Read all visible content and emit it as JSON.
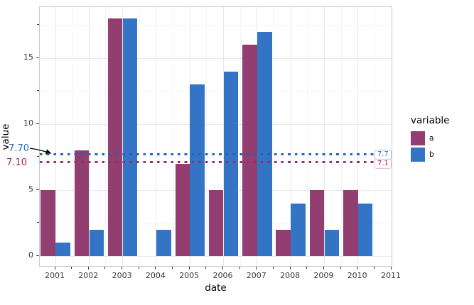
{
  "chart_data": {
    "type": "bar",
    "title": "",
    "xlabel": "date",
    "ylabel": "value",
    "legend_title": "variable",
    "legend_position": "right",
    "grid": true,
    "categories": [
      "2001",
      "2002",
      "2003",
      "2004",
      "2005",
      "2006",
      "2007",
      "2008",
      "2009",
      "2010"
    ],
    "series": [
      {
        "name": "a",
        "color": "#933e70",
        "values": [
          5,
          8,
          18,
          null,
          7,
          5,
          16,
          2,
          5,
          5
        ]
      },
      {
        "name": "b",
        "color": "#3374c4",
        "values": [
          1,
          2,
          18,
          2,
          13,
          14,
          17,
          4,
          2,
          4
        ]
      }
    ],
    "x_tick_labels": [
      "2001",
      "2002",
      "2003",
      "2004",
      "2005",
      "2006",
      "2007",
      "2008",
      "2009",
      "2010",
      "2011"
    ],
    "y_tick_labels": [
      "0",
      "5",
      "10",
      "15"
    ],
    "y_major": [
      0,
      5,
      10,
      15
    ],
    "y_minor": [
      2.5,
      7.5,
      12.5,
      17.5
    ],
    "ylim": [
      -0.9,
      18.9
    ],
    "hlines": [
      {
        "value": 7.7,
        "color": "#2263b4",
        "style": "dotted",
        "left_label": "7.70",
        "left_label_color": "#2c6ac0",
        "right_label": "7.7",
        "right_label_color": "#2c6ac0",
        "right_label_border": "#adc9ec"
      },
      {
        "value": 7.1,
        "color": "#9e2c6d",
        "style": "dotted",
        "left_label": "7.10",
        "left_label_color": "#a52868",
        "right_label": "7.1",
        "right_label_color": "#a52868",
        "right_label_border": "#eebdd6"
      }
    ],
    "annotations": [
      {
        "type": "arrow",
        "from_label": "7.70",
        "points_to_value": 7.7,
        "color": "#000000"
      }
    ]
  }
}
